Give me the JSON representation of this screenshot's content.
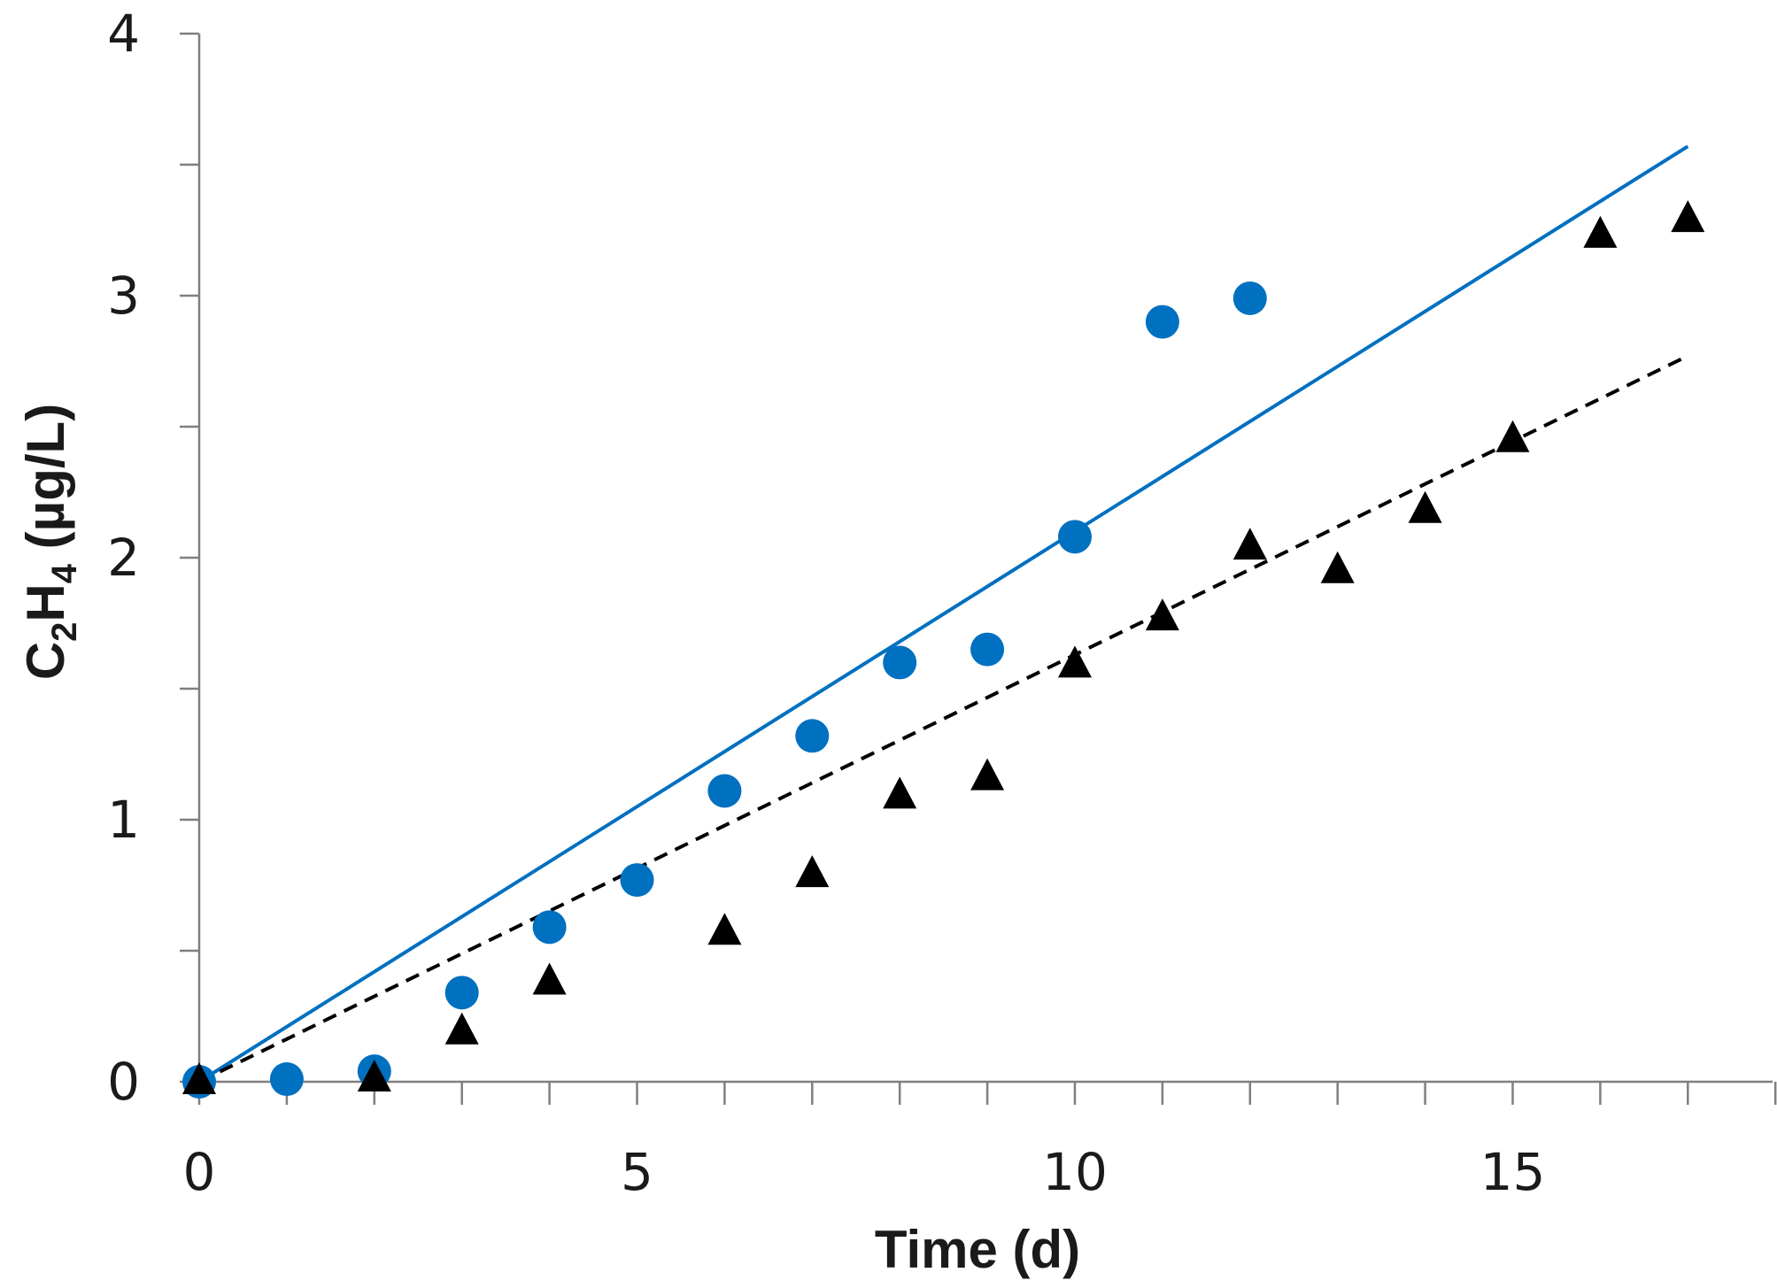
{
  "chart_data": {
    "type": "scatter",
    "title": "",
    "xlabel": "Time (d)",
    "ylabel_main": "C",
    "ylabel_sub1": "2",
    "ylabel_mid": "H",
    "ylabel_sub2": "4",
    "ylabel_unit": " (µg/L)",
    "xlim": [
      0,
      18
    ],
    "ylim": [
      0,
      4
    ],
    "x_ticks": [
      0,
      5,
      10,
      15
    ],
    "x_tick_labels": [
      "0",
      "5",
      "10",
      "15"
    ],
    "x_minor_ticks": [
      1,
      2,
      3,
      4,
      6,
      7,
      8,
      9,
      11,
      12,
      13,
      14,
      16,
      17,
      18
    ],
    "y_ticks": [
      0,
      1,
      2,
      3,
      4
    ],
    "y_tick_labels": [
      "0",
      "1",
      "2",
      "3",
      "4"
    ],
    "y_minor_ticks": [
      0.5,
      1.5,
      2.5,
      3.5
    ],
    "grid": false,
    "series": [
      {
        "name": "circles",
        "marker": "circle",
        "color": "#0070c0",
        "x": [
          0,
          1,
          2,
          3,
          4,
          5,
          6,
          7,
          8,
          9,
          10,
          11,
          12
        ],
        "y": [
          0.0,
          0.01,
          0.04,
          0.34,
          0.59,
          0.77,
          1.11,
          1.32,
          1.6,
          1.65,
          2.08,
          2.9,
          2.99
        ]
      },
      {
        "name": "triangles",
        "marker": "triangle",
        "color": "#000000",
        "x": [
          0,
          2,
          3,
          4,
          6,
          7,
          8,
          9,
          10,
          11,
          12,
          13,
          14,
          15,
          16,
          17
        ],
        "y": [
          0.0,
          0.01,
          0.19,
          0.38,
          0.57,
          0.79,
          1.09,
          1.16,
          1.59,
          1.77,
          2.04,
          1.95,
          2.18,
          2.45,
          3.23,
          3.29
        ]
      }
    ],
    "trendlines": [
      {
        "name": "circles-fit",
        "style": "solid",
        "color": "#0070c0",
        "x": [
          0,
          17
        ],
        "y": [
          0,
          3.57
        ]
      },
      {
        "name": "triangles-fit",
        "style": "dashed",
        "color": "#000000",
        "x": [
          0,
          17
        ],
        "y": [
          0,
          2.77
        ]
      }
    ]
  }
}
